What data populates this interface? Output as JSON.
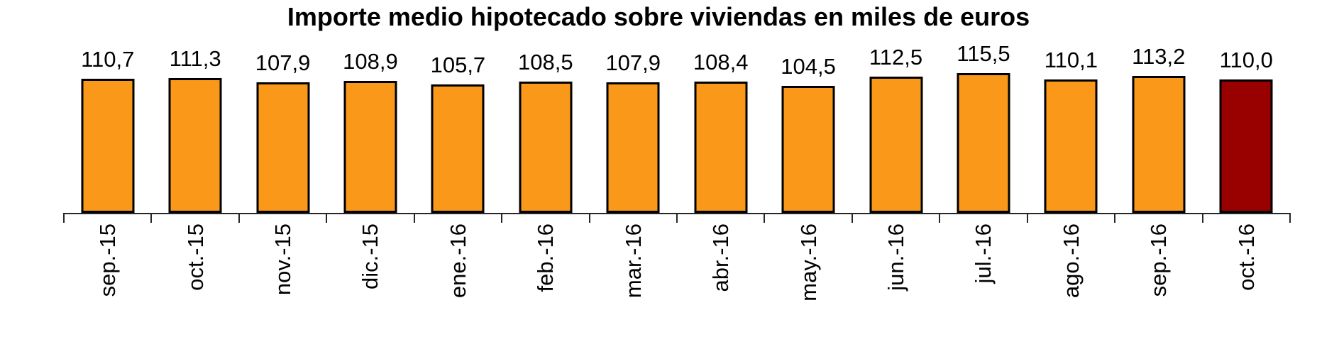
{
  "chart_data": {
    "type": "bar",
    "title": "Importe medio hipotecado sobre viviendas en miles de euros",
    "categories": [
      "sep.-15",
      "oct.-15",
      "nov.-15",
      "dic.-15",
      "ene.-16",
      "feb.-16",
      "mar.-16",
      "abr.-16",
      "may.-16",
      "jun.-16",
      "jul.-16",
      "ago.-16",
      "sep.-16",
      "oct.-16"
    ],
    "values": [
      110.7,
      111.3,
      107.9,
      108.9,
      105.7,
      108.5,
      107.9,
      108.4,
      104.5,
      112.5,
      115.5,
      110.1,
      113.2,
      110.0
    ],
    "value_labels": [
      "110,7",
      "111,3",
      "107,9",
      "108,9",
      "105,7",
      "108,5",
      "107,9",
      "108,4",
      "104,5",
      "112,5",
      "115,5",
      "110,1",
      "113,2",
      "110,0"
    ],
    "xlabel": "",
    "ylabel": "",
    "ylim": [
      0,
      120
    ],
    "grid": false,
    "legend": false,
    "y_axis_visible": false,
    "bar_color": "#FA9919",
    "bar_border_color": "#000000",
    "highlight_index": 13,
    "highlight_color": "#990000",
    "axis_color": "#262626"
  }
}
